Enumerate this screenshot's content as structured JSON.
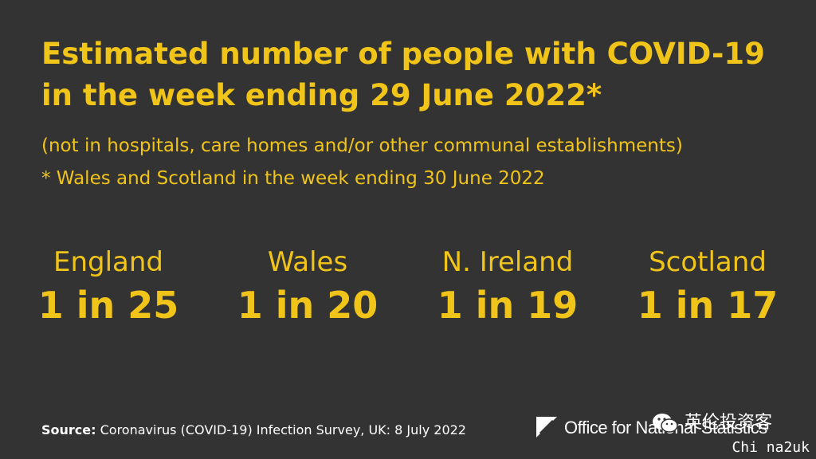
{
  "title": "Estimated number of people with COVID-19 in the week ending 29 June 2022*",
  "subtitle_1": "(not in hospitals, care homes and/or other communal establishments)",
  "subtitle_2": "* Wales and Scotland in the week ending 30 June 2022",
  "stats": [
    {
      "region": "England",
      "ratio": "1 in 25"
    },
    {
      "region": "Wales",
      "ratio": "1 in 20"
    },
    {
      "region": "N. Ireland",
      "ratio": "1 in 19"
    },
    {
      "region": "Scotland",
      "ratio": "1 in 17"
    }
  ],
  "source": {
    "label": "Source:",
    "text": " Coronavirus (COVID-19) Infection Survey, UK: 8 July 2022"
  },
  "logo": {
    "text": "Office for National Statistics",
    "icon": "ons-logo-icon"
  },
  "watermark": {
    "text": "英伦投资客",
    "sub": "Chi na2uk",
    "icon": "wechat-icon"
  },
  "colors": {
    "background": "#333333",
    "accent": "#f0c419",
    "text": "#ffffff"
  }
}
